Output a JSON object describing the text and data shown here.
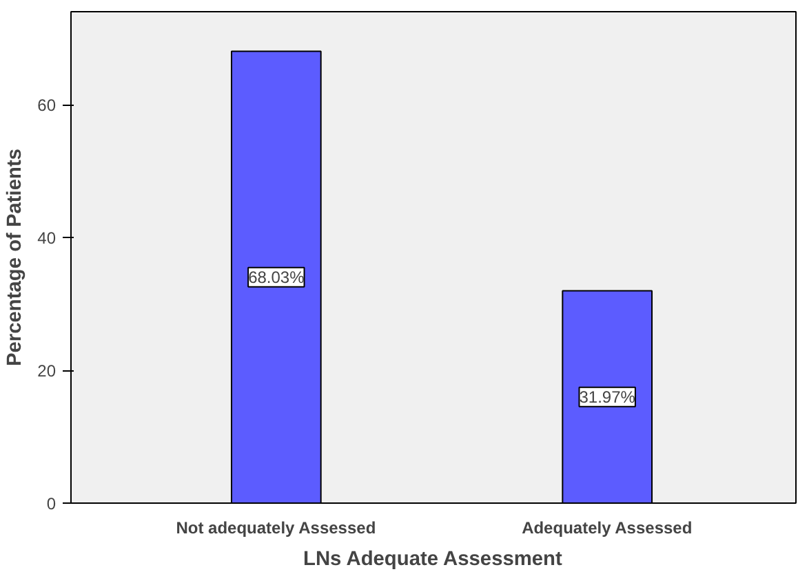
{
  "chart_data": {
    "type": "bar",
    "xlabel": "LNs Adequate Assessment",
    "ylabel": "Percentage of Patients",
    "categories": [
      "Not adequately Assessed",
      "Adequately Assessed"
    ],
    "values": [
      68.03,
      31.97
    ],
    "color": "#5c5cff",
    "value_labels": [
      "68.03%",
      "31.97%"
    ],
    "ylim": [
      0,
      74
    ],
    "yticks": [
      0,
      20,
      40,
      60
    ],
    "grid": false
  }
}
